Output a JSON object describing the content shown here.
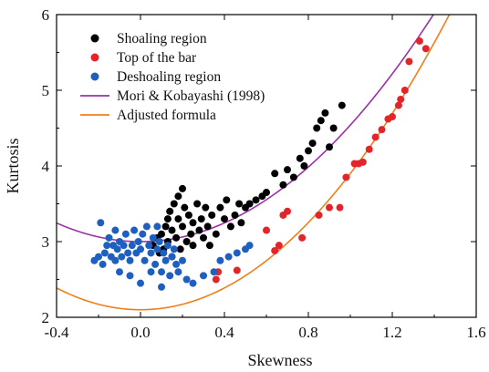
{
  "chart_data": {
    "type": "scatter",
    "xlabel": "Skewness",
    "ylabel": "Kurtosis",
    "xlim": [
      -0.4,
      1.6
    ],
    "ylim": [
      2,
      6
    ],
    "x_ticks": [
      "-0.4",
      "0.0",
      "0.4",
      "0.8",
      "1.2",
      "1.6"
    ],
    "y_ticks": [
      "2",
      "3",
      "4",
      "5",
      "6"
    ],
    "grid": false,
    "legend_position": "top-left",
    "series": [
      {
        "name": "Shoaling region",
        "kind": "scatter",
        "color": "#000000",
        "points": [
          [
            0.06,
            2.95
          ],
          [
            0.08,
            3.05
          ],
          [
            0.09,
            2.85
          ],
          [
            0.1,
            3.1
          ],
          [
            0.11,
            2.9
          ],
          [
            0.12,
            3.2
          ],
          [
            0.13,
            3.0
          ],
          [
            0.13,
            3.3
          ],
          [
            0.14,
            3.4
          ],
          [
            0.15,
            2.8
          ],
          [
            0.15,
            3.15
          ],
          [
            0.16,
            3.5
          ],
          [
            0.17,
            3.05
          ],
          [
            0.18,
            3.3
          ],
          [
            0.18,
            3.6
          ],
          [
            0.19,
            2.9
          ],
          [
            0.2,
            3.2
          ],
          [
            0.2,
            3.7
          ],
          [
            0.21,
            3.45
          ],
          [
            0.22,
            3.0
          ],
          [
            0.23,
            3.35
          ],
          [
            0.24,
            3.1
          ],
          [
            0.25,
            3.25
          ],
          [
            0.25,
            2.95
          ],
          [
            0.27,
            3.5
          ],
          [
            0.28,
            3.15
          ],
          [
            0.29,
            3.3
          ],
          [
            0.3,
            3.05
          ],
          [
            0.31,
            3.45
          ],
          [
            0.32,
            3.2
          ],
          [
            0.33,
            2.95
          ],
          [
            0.34,
            3.35
          ],
          [
            0.36,
            3.1
          ],
          [
            0.38,
            3.45
          ],
          [
            0.4,
            3.3
          ],
          [
            0.41,
            3.55
          ],
          [
            0.43,
            3.2
          ],
          [
            0.45,
            3.35
          ],
          [
            0.47,
            3.5
          ],
          [
            0.48,
            3.25
          ],
          [
            0.5,
            3.45
          ],
          [
            0.52,
            3.5
          ],
          [
            0.55,
            3.55
          ],
          [
            0.58,
            3.6
          ],
          [
            0.6,
            3.65
          ],
          [
            0.64,
            3.9
          ],
          [
            0.68,
            3.75
          ],
          [
            0.7,
            3.95
          ],
          [
            0.73,
            3.85
          ],
          [
            0.76,
            4.1
          ],
          [
            0.78,
            4.0
          ],
          [
            0.8,
            4.2
          ],
          [
            0.82,
            4.3
          ],
          [
            0.84,
            4.5
          ],
          [
            0.86,
            4.6
          ],
          [
            0.88,
            4.7
          ],
          [
            0.9,
            4.25
          ],
          [
            0.92,
            4.5
          ],
          [
            0.96,
            4.8
          ]
        ]
      },
      {
        "name": "Top of the bar",
        "kind": "scatter",
        "color": "#e3242b",
        "points": [
          [
            0.36,
            2.5
          ],
          [
            0.37,
            2.6
          ],
          [
            0.46,
            2.62
          ],
          [
            0.6,
            3.15
          ],
          [
            0.64,
            2.88
          ],
          [
            0.66,
            2.95
          ],
          [
            0.68,
            3.35
          ],
          [
            0.7,
            3.4
          ],
          [
            0.77,
            3.05
          ],
          [
            0.85,
            3.35
          ],
          [
            0.9,
            3.45
          ],
          [
            0.95,
            3.45
          ],
          [
            0.98,
            3.85
          ],
          [
            1.02,
            4.03
          ],
          [
            1.04,
            4.03
          ],
          [
            1.06,
            4.05
          ],
          [
            1.09,
            4.22
          ],
          [
            1.12,
            4.38
          ],
          [
            1.15,
            4.48
          ],
          [
            1.18,
            4.62
          ],
          [
            1.2,
            4.65
          ],
          [
            1.23,
            4.8
          ],
          [
            1.24,
            4.88
          ],
          [
            1.26,
            5.0
          ],
          [
            1.28,
            5.38
          ],
          [
            1.33,
            5.65
          ],
          [
            1.36,
            5.55
          ]
        ]
      },
      {
        "name": "Deshoaling region",
        "kind": "scatter",
        "color": "#1f5fbf",
        "points": [
          [
            -0.22,
            2.75
          ],
          [
            -0.2,
            2.8
          ],
          [
            -0.19,
            3.25
          ],
          [
            -0.18,
            2.7
          ],
          [
            -0.17,
            2.85
          ],
          [
            -0.16,
            2.95
          ],
          [
            -0.15,
            3.05
          ],
          [
            -0.14,
            2.8
          ],
          [
            -0.13,
            2.95
          ],
          [
            -0.12,
            2.75
          ],
          [
            -0.11,
            2.9
          ],
          [
            -0.1,
            3.0
          ],
          [
            -0.09,
            2.8
          ],
          [
            -0.08,
            2.95
          ],
          [
            -0.07,
            3.1
          ],
          [
            -0.06,
            2.85
          ],
          [
            -0.05,
            2.75
          ],
          [
            -0.04,
            2.95
          ],
          [
            -0.03,
            3.15
          ],
          [
            -0.02,
            2.85
          ],
          [
            -0.01,
            3.0
          ],
          [
            0.0,
            2.9
          ],
          [
            0.01,
            3.1
          ],
          [
            0.02,
            2.75
          ],
          [
            0.03,
            3.2
          ],
          [
            0.04,
            2.95
          ],
          [
            0.05,
            2.85
          ],
          [
            0.06,
            3.05
          ],
          [
            0.07,
            2.7
          ],
          [
            0.08,
            2.9
          ],
          [
            0.09,
            3.0
          ],
          [
            0.1,
            2.6
          ],
          [
            0.11,
            2.85
          ],
          [
            0.12,
            2.75
          ],
          [
            0.13,
            2.95
          ],
          [
            0.14,
            2.55
          ],
          [
            0.15,
            2.8
          ],
          [
            0.16,
            2.9
          ],
          [
            0.17,
            2.7
          ],
          [
            0.18,
            2.6
          ],
          [
            0.2,
            2.75
          ],
          [
            0.22,
            2.5
          ],
          [
            0.25,
            2.45
          ],
          [
            0.3,
            2.55
          ],
          [
            0.35,
            2.6
          ],
          [
            0.38,
            2.75
          ],
          [
            0.42,
            2.8
          ],
          [
            0.46,
            2.85
          ],
          [
            0.5,
            2.9
          ],
          [
            0.52,
            2.95
          ],
          [
            -0.1,
            2.6
          ],
          [
            -0.05,
            2.55
          ],
          [
            0.0,
            2.45
          ],
          [
            0.05,
            2.6
          ],
          [
            0.1,
            2.4
          ],
          [
            -0.12,
            3.15
          ],
          [
            0.08,
            3.2
          ]
        ]
      },
      {
        "name": "Mori & Kobayashi (1998)",
        "kind": "line",
        "color": "#9b30a8",
        "formula": "y = 3 + 1.54 x^2"
      },
      {
        "name": "Adjusted formula",
        "kind": "line",
        "color": "#f07f19",
        "formula": "y = 2.1 + 1.8 x^2"
      }
    ]
  }
}
